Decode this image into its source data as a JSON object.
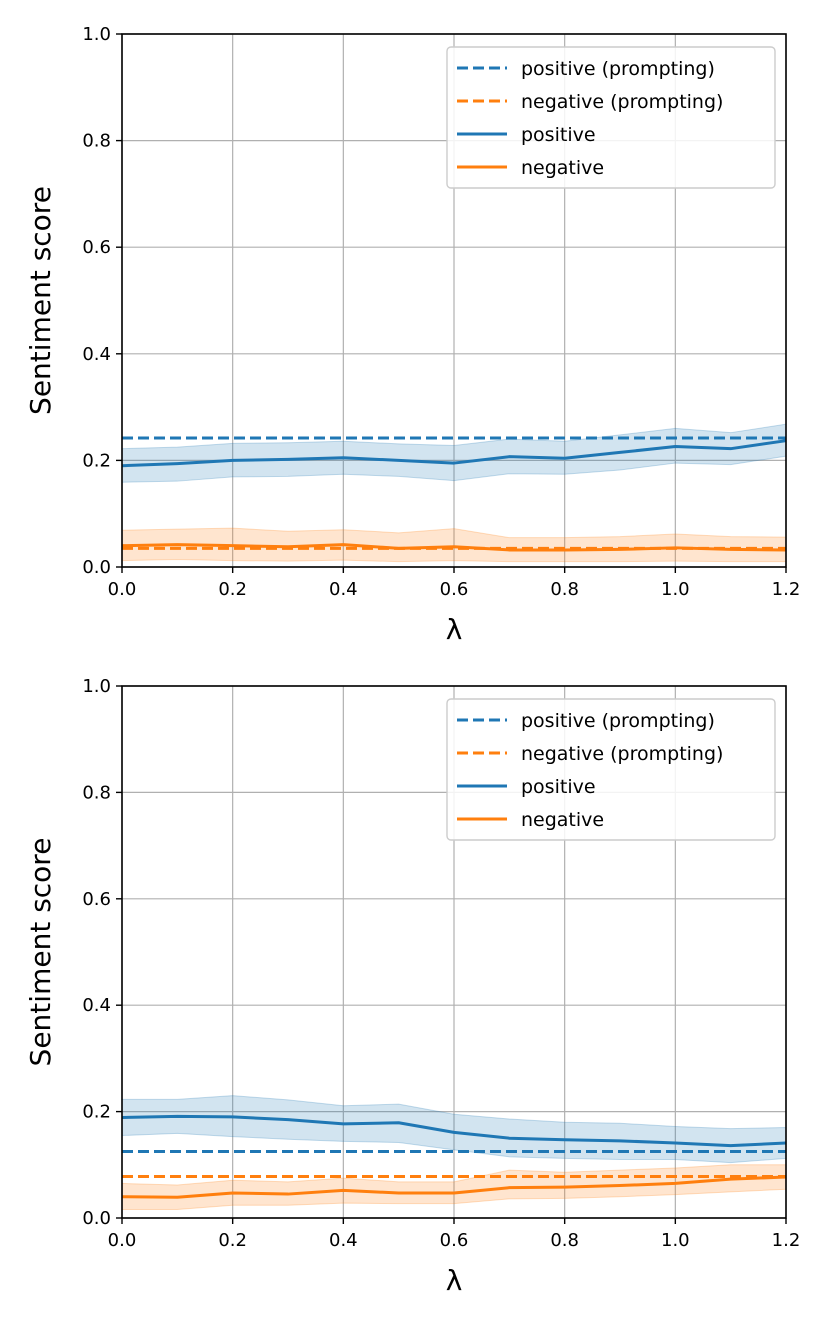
{
  "colors": {
    "positive": "#1f77b4",
    "negative": "#ff7f0e",
    "grid": "#b0b0b0",
    "axis": "#000000",
    "legend_border": "#cccccc"
  },
  "chart_data": [
    {
      "type": "line",
      "title": "",
      "xlabel": "λ",
      "ylabel": "Sentiment score",
      "xlim": [
        0.0,
        1.2
      ],
      "ylim": [
        0.0,
        1.0
      ],
      "grid": true,
      "legend_position": "top-right",
      "x_ticks": [
        "0.0",
        "0.2",
        "0.4",
        "0.6",
        "0.8",
        "1.0",
        "1.2"
      ],
      "y_ticks": [
        "0.0",
        "0.2",
        "0.4",
        "0.6",
        "0.8",
        "1.0"
      ],
      "x": [
        0.0,
        0.1,
        0.2,
        0.3,
        0.4,
        0.5,
        0.6,
        0.7,
        0.8,
        0.9,
        1.0,
        1.1,
        1.2
      ],
      "series": [
        {
          "name": "positive (prompting)",
          "color_key": "positive",
          "style": "dashed",
          "values": [
            0.242,
            0.242,
            0.242,
            0.242,
            0.242,
            0.242,
            0.242,
            0.242,
            0.242,
            0.242,
            0.242,
            0.242,
            0.242
          ]
        },
        {
          "name": "negative (prompting)",
          "color_key": "negative",
          "style": "dashed",
          "values": [
            0.035,
            0.035,
            0.035,
            0.035,
            0.035,
            0.035,
            0.035,
            0.035,
            0.035,
            0.035,
            0.035,
            0.035,
            0.035
          ]
        },
        {
          "name": "positive",
          "color_key": "positive",
          "style": "solid",
          "values": [
            0.19,
            0.194,
            0.2,
            0.202,
            0.205,
            0.2,
            0.195,
            0.207,
            0.204,
            0.215,
            0.226,
            0.222,
            0.237
          ],
          "lower": [
            0.159,
            0.161,
            0.169,
            0.17,
            0.174,
            0.17,
            0.162,
            0.175,
            0.174,
            0.182,
            0.195,
            0.192,
            0.208
          ],
          "upper": [
            0.222,
            0.225,
            0.232,
            0.233,
            0.236,
            0.231,
            0.228,
            0.24,
            0.236,
            0.248,
            0.26,
            0.252,
            0.268
          ]
        },
        {
          "name": "negative",
          "color_key": "negative",
          "style": "solid",
          "values": [
            0.04,
            0.042,
            0.04,
            0.038,
            0.042,
            0.035,
            0.038,
            0.032,
            0.032,
            0.033,
            0.036,
            0.033,
            0.032
          ],
          "lower": [
            0.012,
            0.014,
            0.012,
            0.011,
            0.013,
            0.01,
            0.012,
            0.01,
            0.01,
            0.01,
            0.011,
            0.01,
            0.01
          ],
          "upper": [
            0.069,
            0.071,
            0.073,
            0.067,
            0.07,
            0.064,
            0.072,
            0.055,
            0.055,
            0.057,
            0.062,
            0.057,
            0.056
          ]
        }
      ]
    },
    {
      "type": "line",
      "title": "",
      "xlabel": "λ",
      "ylabel": "Sentiment score",
      "xlim": [
        0.0,
        1.2
      ],
      "ylim": [
        0.0,
        1.0
      ],
      "grid": true,
      "legend_position": "top-right",
      "x_ticks": [
        "0.0",
        "0.2",
        "0.4",
        "0.6",
        "0.8",
        "1.0",
        "1.2"
      ],
      "y_ticks": [
        "0.0",
        "0.2",
        "0.4",
        "0.6",
        "0.8",
        "1.0"
      ],
      "x": [
        0.0,
        0.1,
        0.2,
        0.3,
        0.4,
        0.5,
        0.6,
        0.7,
        0.8,
        0.9,
        1.0,
        1.1,
        1.2
      ],
      "series": [
        {
          "name": "positive (prompting)",
          "color_key": "positive",
          "style": "dashed",
          "values": [
            0.125,
            0.125,
            0.125,
            0.125,
            0.125,
            0.125,
            0.125,
            0.125,
            0.125,
            0.125,
            0.125,
            0.125,
            0.125
          ]
        },
        {
          "name": "negative (prompting)",
          "color_key": "negative",
          "style": "dashed",
          "values": [
            0.078,
            0.078,
            0.078,
            0.078,
            0.078,
            0.078,
            0.078,
            0.078,
            0.078,
            0.078,
            0.078,
            0.078,
            0.078
          ]
        },
        {
          "name": "positive",
          "color_key": "positive",
          "style": "solid",
          "values": [
            0.189,
            0.191,
            0.19,
            0.185,
            0.177,
            0.179,
            0.161,
            0.15,
            0.147,
            0.145,
            0.141,
            0.136,
            0.141
          ],
          "lower": [
            0.155,
            0.159,
            0.153,
            0.148,
            0.144,
            0.142,
            0.128,
            0.115,
            0.112,
            0.11,
            0.11,
            0.104,
            0.112
          ],
          "upper": [
            0.223,
            0.223,
            0.23,
            0.222,
            0.211,
            0.214,
            0.195,
            0.186,
            0.18,
            0.178,
            0.172,
            0.168,
            0.17
          ]
        },
        {
          "name": "negative",
          "color_key": "negative",
          "style": "solid",
          "values": [
            0.04,
            0.039,
            0.047,
            0.045,
            0.052,
            0.047,
            0.047,
            0.057,
            0.058,
            0.061,
            0.065,
            0.073,
            0.077
          ],
          "lower": [
            0.016,
            0.016,
            0.024,
            0.024,
            0.028,
            0.027,
            0.027,
            0.036,
            0.037,
            0.04,
            0.044,
            0.049,
            0.054
          ],
          "upper": [
            0.065,
            0.062,
            0.071,
            0.068,
            0.075,
            0.068,
            0.068,
            0.09,
            0.086,
            0.09,
            0.094,
            0.1,
            0.1
          ]
        }
      ]
    }
  ]
}
